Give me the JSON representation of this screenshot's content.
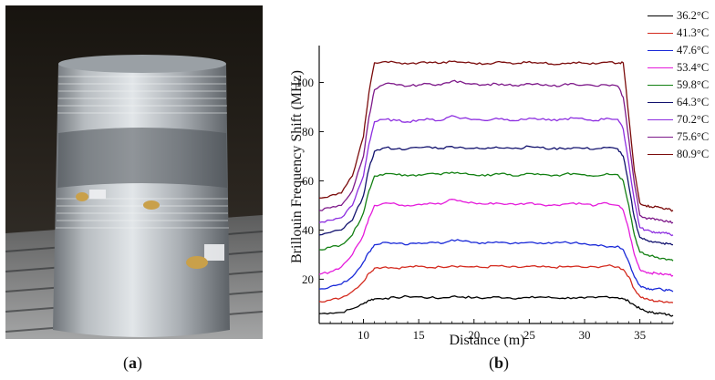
{
  "captions": {
    "a": "a",
    "b": "b"
  },
  "photo": {
    "subject": "photograph of a metal cylinder wound with optical fiber, with sensor tags attached",
    "colors": {
      "background": "#1e1b17",
      "cylinder": "#a7acb0",
      "highlight": "#dfe3e6",
      "tag": "#c9a04a"
    }
  },
  "chart_data": {
    "type": "line",
    "xlabel": "Distance (m)",
    "ylabel": "Brillouin Frequency Shift (MHz)",
    "xlim": [
      6,
      38
    ],
    "ylim": [
      2,
      115
    ],
    "xticks": [
      10,
      15,
      20,
      25,
      30,
      35
    ],
    "yticks": [
      20,
      40,
      60,
      80,
      100
    ],
    "grid": false,
    "legend": "top-right outside",
    "x": [
      6,
      7,
      8,
      9,
      10,
      10.5,
      11,
      12,
      13,
      14,
      15,
      16,
      17,
      18,
      19,
      20,
      21,
      22,
      23,
      24,
      25,
      26,
      27,
      28,
      29,
      30,
      31,
      32,
      33,
      33.5,
      34,
      34.5,
      35,
      35.5,
      36,
      36.5,
      37,
      37.5,
      38
    ],
    "series": [
      {
        "name": "36.2°C",
        "color": "#000000",
        "values": [
          6,
          6.3,
          6.5,
          8,
          10,
          11.5,
          12,
          12.3,
          12.5,
          13,
          12.8,
          12.5,
          12.3,
          13,
          12.8,
          12.5,
          12.3,
          12.8,
          12.5,
          12.3,
          12.5,
          12.8,
          12.5,
          12.3,
          12.5,
          12.3,
          12.5,
          13,
          12.5,
          12,
          11,
          9.5,
          8,
          7,
          6.5,
          6.3,
          6,
          5.6,
          5.3
        ]
      },
      {
        "name": "41.3°C",
        "color": "#d42a1e",
        "values": [
          11,
          11.5,
          12.5,
          15,
          19,
          22.5,
          24.5,
          25,
          24.5,
          25,
          25.2,
          24.8,
          25,
          25.5,
          25.2,
          25,
          24.8,
          25.5,
          25,
          24.8,
          25.2,
          25,
          24.8,
          25,
          25.2,
          24.8,
          25,
          25.5,
          25,
          24,
          21,
          16,
          13,
          12,
          11.5,
          11,
          11,
          10.8,
          10.5
        ]
      },
      {
        "name": "47.6°C",
        "color": "#1a2ad8",
        "values": [
          16,
          17,
          18,
          21,
          27,
          31,
          34,
          35,
          34.5,
          34,
          34.8,
          35,
          34.5,
          36,
          35.5,
          35,
          34.5,
          35.2,
          34.8,
          34.5,
          35,
          34.8,
          34.5,
          35,
          34.8,
          34.5,
          34,
          33,
          33.5,
          32,
          27,
          21,
          17.5,
          16.5,
          16,
          16.2,
          15.8,
          15.5,
          15
        ]
      },
      {
        "name": "53.4°C",
        "color": "#e51bdb",
        "values": [
          22,
          23,
          25,
          30,
          38,
          45,
          50,
          51,
          50.5,
          50,
          50.5,
          51,
          50.5,
          52.5,
          51.5,
          51,
          50.5,
          51,
          50.5,
          50.5,
          51,
          50.5,
          50,
          50.5,
          51,
          50.5,
          50,
          51,
          50,
          48,
          40,
          30,
          24,
          23,
          22.5,
          22.5,
          22,
          22,
          21.5
        ]
      },
      {
        "name": "59.8°C",
        "color": "#138013",
        "values": [
          32,
          33,
          34,
          38,
          47,
          56,
          62,
          63,
          62.5,
          62,
          62.5,
          63,
          62.5,
          63.5,
          63,
          62.5,
          62,
          63,
          62.5,
          62,
          63,
          62.5,
          62,
          62.5,
          63,
          62.5,
          62,
          63,
          62.5,
          60,
          50,
          38,
          31,
          30,
          29.5,
          29,
          28.5,
          28,
          27.5
        ]
      },
      {
        "name": "64.3°C",
        "color": "#12126e",
        "values": [
          38,
          39,
          40,
          44,
          54,
          65,
          72,
          73.5,
          73,
          73,
          73.5,
          73.8,
          73.2,
          74,
          73.5,
          73.2,
          73,
          73.8,
          73.5,
          73.2,
          74,
          73.5,
          73,
          73.2,
          73.5,
          73.2,
          73,
          73.5,
          73,
          70,
          58,
          45,
          37,
          36,
          35.5,
          35,
          34.5,
          34.5,
          34
        ]
      },
      {
        "name": "70.2°C",
        "color": "#8d2ee0",
        "values": [
          43,
          44,
          45,
          50,
          62,
          75,
          84,
          85,
          84.5,
          84,
          84.8,
          85,
          84.5,
          86.5,
          85.5,
          85,
          84.5,
          85.5,
          85,
          84.5,
          85.5,
          85,
          84.5,
          85,
          85.5,
          85,
          84.5,
          85.5,
          85,
          81,
          67,
          52,
          41,
          40,
          39.5,
          39,
          39,
          38.5,
          38
        ]
      },
      {
        "name": "75.6°C",
        "color": "#7e1a8a",
        "values": [
          48,
          49,
          50,
          56,
          70,
          86,
          97,
          99.5,
          99,
          98.5,
          99,
          99.5,
          99,
          100.5,
          100,
          99.5,
          99,
          99.5,
          99,
          98.5,
          99.5,
          99,
          98.5,
          99,
          99.5,
          99,
          98.5,
          99,
          98.5,
          94,
          77,
          59,
          46,
          45,
          44.5,
          44.5,
          44,
          43.5,
          43
        ]
      },
      {
        "name": "80.9°C",
        "color": "#7b0c0c",
        "values": [
          53,
          54,
          55,
          62,
          78,
          96,
          108,
          108.5,
          108,
          107.5,
          108,
          108.3,
          107.8,
          108.5,
          108.2,
          107.8,
          107.5,
          108.3,
          108,
          107.8,
          108.5,
          108,
          107.5,
          107.8,
          108.2,
          107.8,
          107.5,
          108.2,
          107.8,
          108,
          86,
          64,
          51,
          50,
          49.5,
          49.5,
          49,
          48.5,
          48
        ]
      }
    ]
  }
}
